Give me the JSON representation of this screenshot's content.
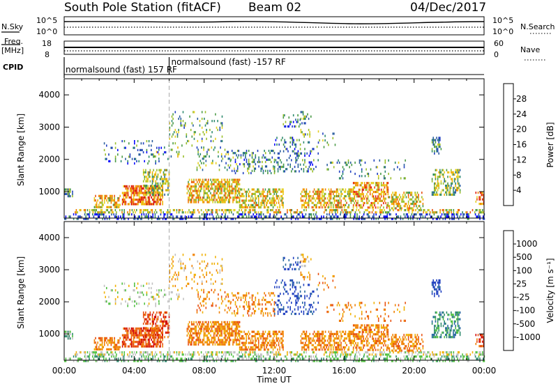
{
  "header": {
    "station": "South Pole Station (fitACF)",
    "beam": "Beam 02",
    "date": "04/Dec/2017"
  },
  "strips": {
    "nsky_label": "N.Sky",
    "nsky_ticks": [
      "10^5",
      "10^0"
    ],
    "nsearch_label": "N.Search",
    "nsearch_ticks": [
      "10^5",
      "10^0"
    ],
    "freq_label_line1": "Freq.",
    "freq_label_line2": "[MHz]",
    "freq_ticks": [
      "18",
      "8"
    ],
    "nave_label": "Nave",
    "nave_ticks": [
      "60",
      "0"
    ],
    "cpid_label": "CPID",
    "cpid_segments": [
      {
        "text": "normalsound (fast) 157 RF",
        "start_hour": 0
      },
      {
        "text": "normalsound (fast) -157 RF",
        "start_hour": 6
      }
    ]
  },
  "chart_data": [
    {
      "type": "heatmap",
      "title": "",
      "xlabel": "",
      "ylabel": "Slant Range [km]",
      "xlim_hours": [
        0,
        24
      ],
      "ylim_km": [
        180,
        4500
      ],
      "yticks": [
        1000,
        2000,
        3000,
        4000
      ],
      "ytick_labels": [
        "1000",
        "2000",
        "3000",
        "4000"
      ],
      "colorbar": {
        "label": "Power [dB]",
        "ticks": [
          "4",
          "8",
          "12",
          "16",
          "20",
          "24",
          "28"
        ],
        "colors": [
          "#0000ff",
          "#2040c0",
          "#2a5e9e",
          "#2e8a6e",
          "#4a9a46",
          "#9abe2a",
          "#e6d020",
          "#f0b000",
          "#f08000",
          "#e85010",
          "#e02010",
          "#d00000"
        ]
      },
      "dashed_marker_hour": 6
    },
    {
      "type": "heatmap",
      "title": "",
      "xlabel": "Time UT",
      "ylabel": "Slant Range [km]",
      "xlim_hours": [
        0,
        24
      ],
      "ylim_km": [
        180,
        4500
      ],
      "yticks": [
        1000,
        2000,
        3000,
        4000
      ],
      "ytick_labels": [
        "1000",
        "2000",
        "3000",
        "4000"
      ],
      "xtick_labels": [
        "00:00",
        "04:00",
        "08:00",
        "12:00",
        "16:00",
        "20:00",
        "00:00"
      ],
      "colorbar": {
        "label": "Velocity [m s⁻¹]",
        "ticks": [
          "1000",
          "500",
          "100",
          "25",
          "-25",
          "-100",
          "-500",
          "-1000"
        ],
        "colors": [
          "#2040c0",
          "#2a6aa0",
          "#2e8a6e",
          "#50c040",
          "#c0c0c0",
          "#f0b000",
          "#f08000",
          "#e85010",
          "#d00000"
        ]
      },
      "dashed_marker_hour": 6
    }
  ]
}
